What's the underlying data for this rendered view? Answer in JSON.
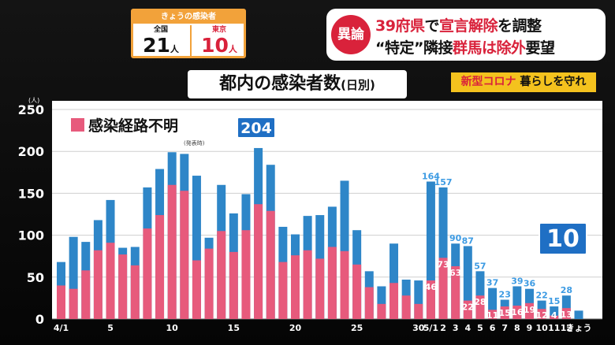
{
  "today": {
    "header": "きょうの感染者",
    "national_label": "全国",
    "national_value": "21",
    "tokyo_label": "東京",
    "tokyo_value": "10",
    "unit": "人"
  },
  "headline": {
    "tag": "異論",
    "line1_a": "39府県",
    "line1_b": "で",
    "line1_c": "宣言解除",
    "line1_d": "を調整",
    "line2_a": "“特定”隣接",
    "line2_b": "群馬は除外",
    "line2_c": "要望"
  },
  "chart_title": {
    "main": "都内の感染者数",
    "sub": "(日別)"
  },
  "corona_label": {
    "a": "新型コロナ",
    "b": " 暮らしを守れ"
  },
  "legend_label": "感染経路不明",
  "legend_note": "(発表時)",
  "callout_peak": "204",
  "callout_today": "10",
  "colors": {
    "total": "#2e86c8",
    "unknown": "#e75a7c",
    "accent_orange": "#f2a23a",
    "accent_red": "#d9223b",
    "callout": "#1f6fc4",
    "label_yellow": "#f4c21e"
  },
  "chart_data": {
    "type": "bar",
    "title": "都内の感染者数(日別)",
    "ylabel": "(人)",
    "ylim": [
      0,
      250
    ],
    "yticks": [
      0,
      50,
      100,
      150,
      200,
      250
    ],
    "grid": true,
    "categories": [
      "4/1",
      "2",
      "3",
      "4",
      "5",
      "6",
      "7",
      "8",
      "9",
      "10",
      "11",
      "12",
      "13",
      "14",
      "15",
      "16",
      "17",
      "18",
      "19",
      "20",
      "21",
      "22",
      "23",
      "24",
      "25",
      "26",
      "27",
      "28",
      "29",
      "30",
      "5/1",
      "2",
      "3",
      "4",
      "5",
      "6",
      "7",
      "8",
      "9",
      "10",
      "11",
      "12",
      "きょう"
    ],
    "x_tick_labels": [
      "4/1",
      "",
      "",
      "",
      "5",
      "",
      "",
      "",
      "",
      "10",
      "",
      "",
      "",
      "",
      "15",
      "",
      "",
      "",
      "",
      "20",
      "",
      "",
      "",
      "",
      "25",
      "",
      "",
      "",
      "",
      "30",
      "5/1",
      "2",
      "3",
      "4",
      "5",
      "6",
      "7",
      "8",
      "9",
      "10",
      "11",
      "12",
      "きょう"
    ],
    "series": [
      {
        "name": "",
        "values": [
          68,
          98,
          92,
          118,
          142,
          85,
          86,
          157,
          179,
          199,
          197,
          171,
          97,
          160,
          126,
          149,
          204,
          184,
          110,
          101,
          123,
          124,
          134,
          165,
          106,
          57,
          39,
          90,
          47,
          46,
          164,
          157,
          90,
          87,
          57,
          37,
          23,
          39,
          36,
          22,
          15,
          28,
          10
        ]
      },
      {
        "name": "感染経路不明",
        "values": [
          40,
          36,
          58,
          82,
          91,
          77,
          64,
          108,
          124,
          160,
          153,
          70,
          84,
          105,
          80,
          106,
          137,
          129,
          68,
          76,
          82,
          72,
          86,
          81,
          65,
          38,
          18,
          43,
          28,
          18,
          46,
          73,
          63,
          22,
          28,
          11,
          15,
          16,
          19,
          12,
          4,
          13,
          0
        ]
      }
    ],
    "data_labels": {
      "total": {
        "16": "204",
        "30": "164",
        "31": "157",
        "32": "90",
        "33": "87",
        "34": "57",
        "35": "37",
        "36": "23",
        "37": "39",
        "38": "36",
        "39": "22",
        "40": "15",
        "41": "28"
      },
      "unknown": {
        "30": "46",
        "31": "73",
        "32": "63",
        "33": "22",
        "34": "28",
        "35": "11",
        "36": "15",
        "37": "16",
        "38": "19",
        "39": "12",
        "40": "4",
        "41": "13"
      }
    }
  }
}
